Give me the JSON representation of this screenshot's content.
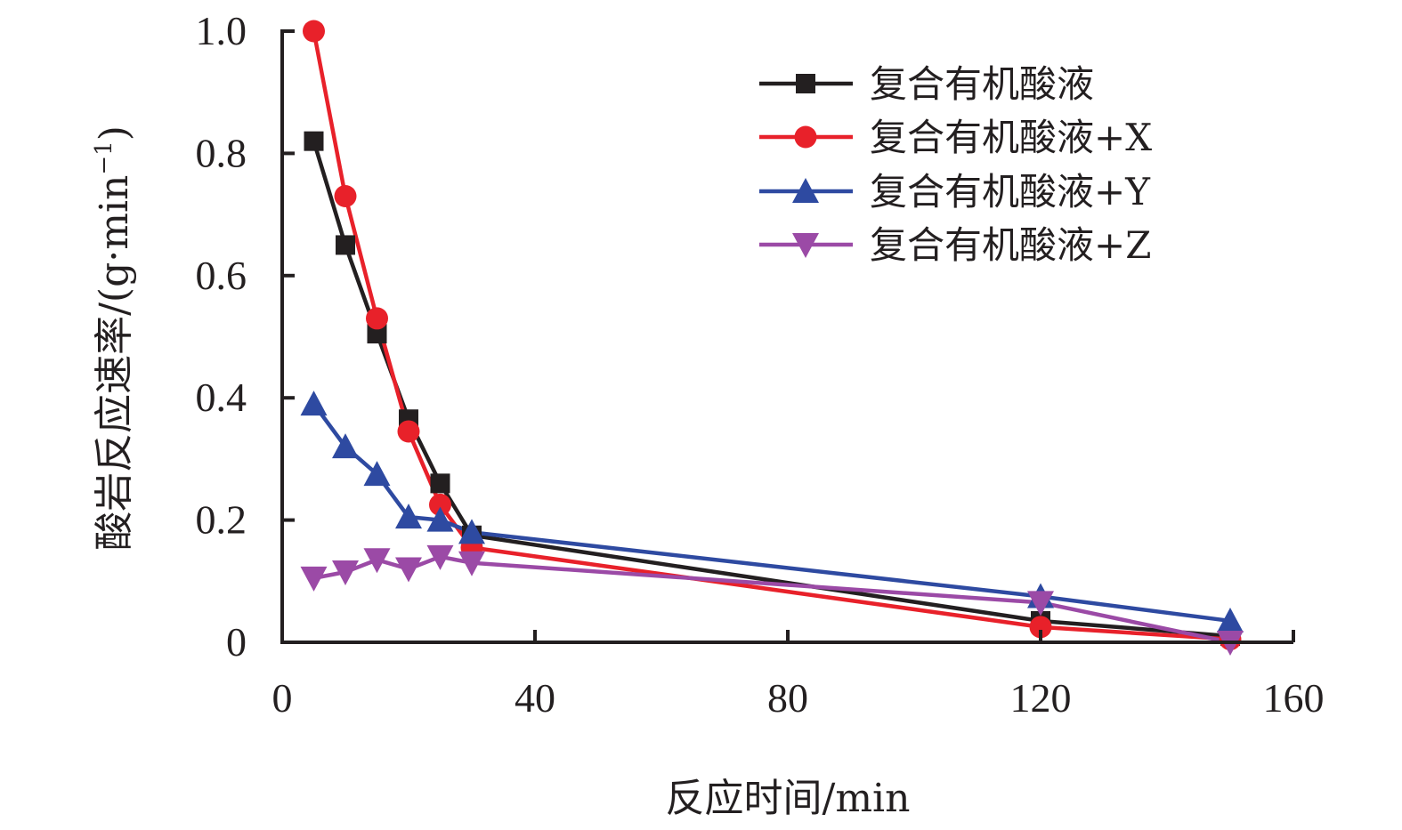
{
  "chart_data": {
    "type": "line",
    "xlabel": "反应时间/min",
    "ylabel": "酸岩反应速率/(g·min",
    "ylabel_sup": "−1",
    "ylabel_close": ")",
    "xlim": [
      0,
      160
    ],
    "ylim": [
      0,
      1.0
    ],
    "x_ticks": [
      0,
      40,
      80,
      120,
      160
    ],
    "x_tick_labels": [
      "0",
      "40",
      "80",
      "120",
      "160"
    ],
    "y_ticks": [
      0,
      0.2,
      0.4,
      0.6,
      0.8,
      1.0
    ],
    "y_tick_labels": [
      "0",
      "0.2",
      "0.4",
      "0.6",
      "0.8",
      "1.0"
    ],
    "grid": false,
    "legend_position": "top-right",
    "series": [
      {
        "name": "复合有机酸液",
        "color": "#231f20",
        "marker": "square",
        "x": [
          5,
          10,
          15,
          20,
          25,
          30,
          120,
          150
        ],
        "y": [
          0.82,
          0.65,
          0.505,
          0.365,
          0.26,
          0.175,
          0.035,
          0.01
        ]
      },
      {
        "name": "复合有机酸液+X",
        "color": "#e8212a",
        "marker": "circle",
        "x": [
          5,
          10,
          15,
          20,
          25,
          30,
          120,
          150
        ],
        "y": [
          1.0,
          0.73,
          0.53,
          0.345,
          0.225,
          0.155,
          0.025,
          0.005
        ]
      },
      {
        "name": "复合有机酸液+Y",
        "color": "#2e4aa1",
        "marker": "triangle-up",
        "x": [
          5,
          10,
          15,
          20,
          25,
          30,
          120,
          150
        ],
        "y": [
          0.39,
          0.32,
          0.275,
          0.205,
          0.2,
          0.18,
          0.075,
          0.035
        ]
      },
      {
        "name": "复合有机酸液+Z",
        "color": "#9b4aa6",
        "marker": "triangle-down",
        "x": [
          5,
          10,
          15,
          20,
          25,
          30,
          120,
          150
        ],
        "y": [
          0.105,
          0.115,
          0.135,
          0.12,
          0.14,
          0.13,
          0.065,
          0.0
        ]
      }
    ]
  }
}
